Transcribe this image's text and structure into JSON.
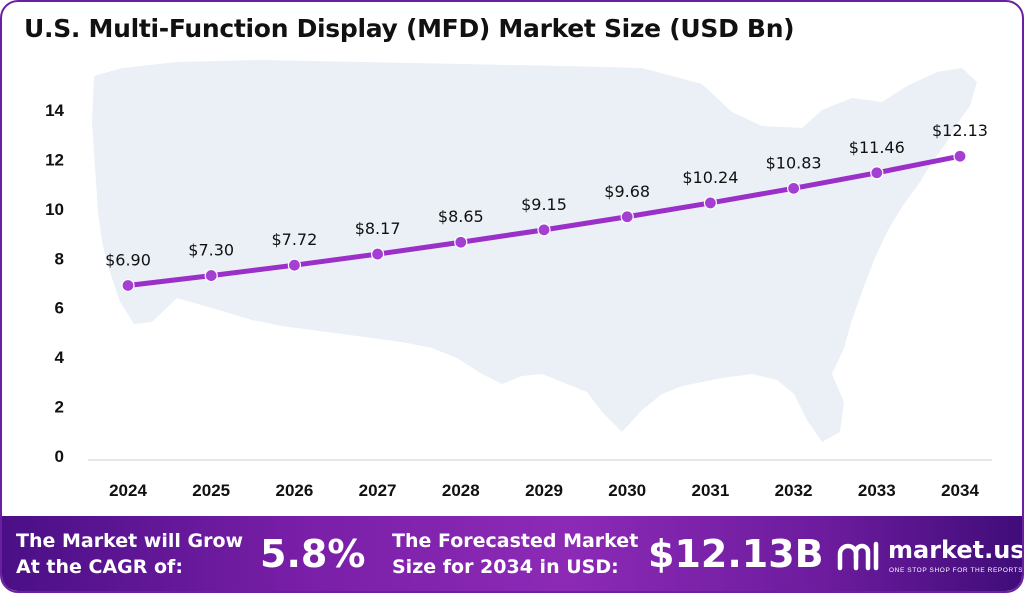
{
  "title": "U.S. Multi-Function Display (MFD) Market Size (USD Bn)",
  "chart_data": {
    "type": "line",
    "title": "U.S. Multi-Function Display (MFD) Market Size (USD Bn)",
    "x": [
      "2024",
      "2025",
      "2026",
      "2027",
      "2028",
      "2029",
      "2030",
      "2031",
      "2032",
      "2033",
      "2034"
    ],
    "values": [
      6.9,
      7.3,
      7.72,
      8.17,
      8.65,
      9.15,
      9.68,
      10.24,
      10.83,
      11.46,
      12.13
    ],
    "data_labels": [
      "$6.90",
      "$7.30",
      "$7.72",
      "$8.17",
      "$8.65",
      "$9.15",
      "$9.68",
      "$10.24",
      "$10.83",
      "$11.46",
      "$12.13"
    ],
    "y_ticks": [
      0,
      2,
      4,
      6,
      8,
      10,
      12,
      14
    ],
    "ylim": [
      0,
      14
    ],
    "xlabel": "",
    "ylabel": "",
    "grid": false,
    "line_color": "#9b30c8",
    "marker_color": "#a53ed3"
  },
  "footer": {
    "cagr_label_line1": "The Market will Grow",
    "cagr_label_line2": "At the CAGR of:",
    "cagr_value": "5.8%",
    "forecast_label_line1": "The Forecasted Market",
    "forecast_label_line2": "Size for 2034 in USD:",
    "forecast_value": "$12.13B",
    "logo_text": "market.us",
    "logo_tagline": "ONE STOP SHOP FOR THE REPORTS",
    "logo_icon": "market-us-logo-icon"
  }
}
